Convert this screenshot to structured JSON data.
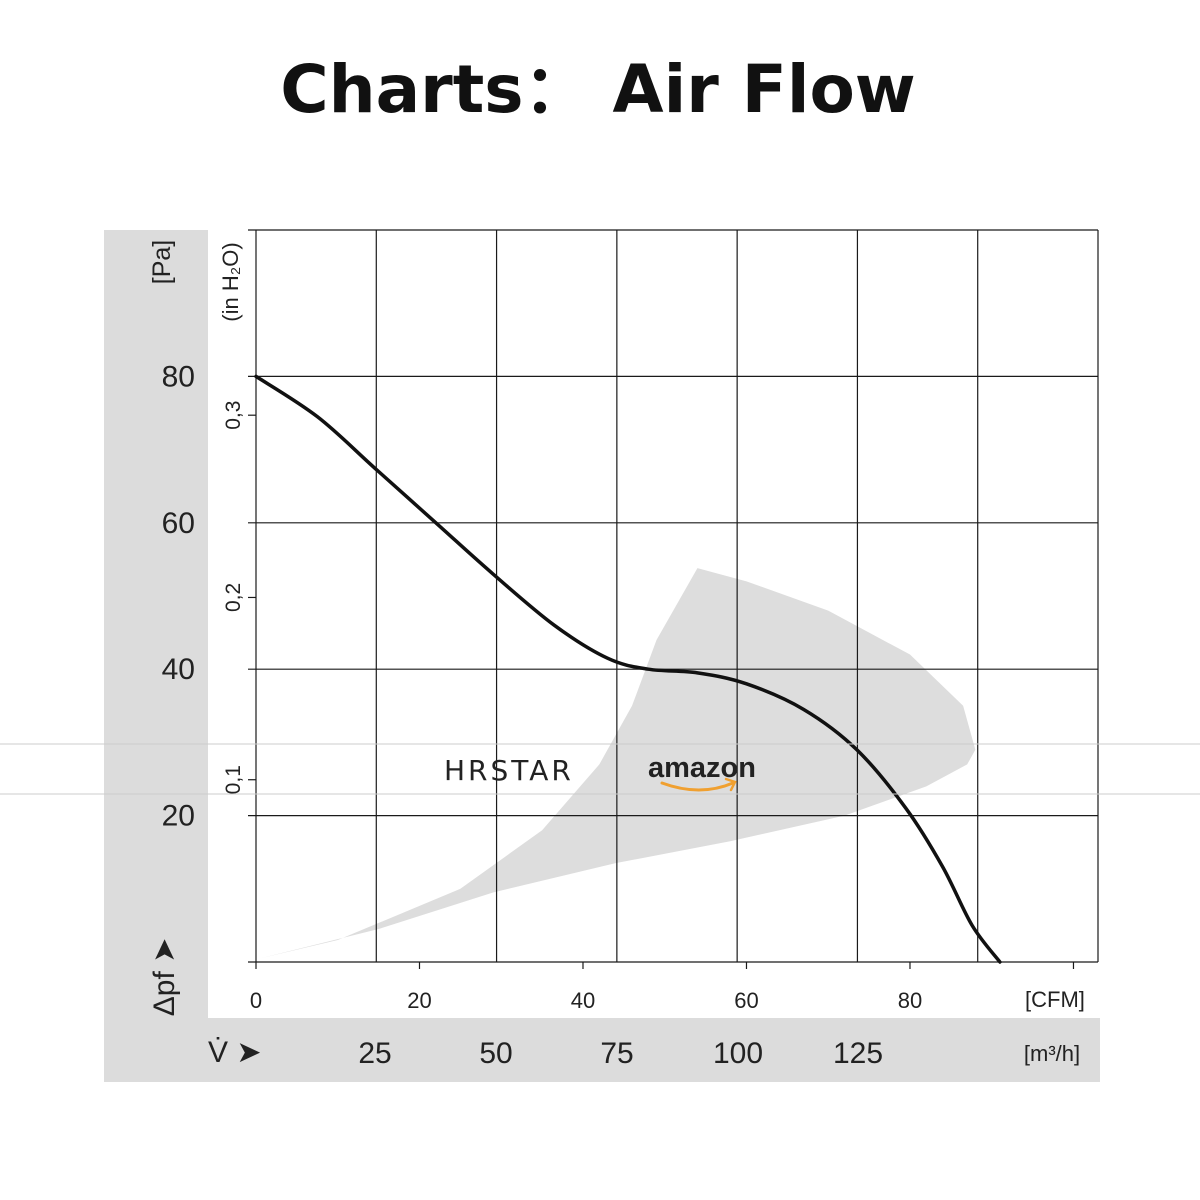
{
  "title": "Charts：  Air Flow",
  "watermarks": {
    "brand": "HRSTAR",
    "store": "amazon"
  },
  "chart_data": {
    "type": "line",
    "x_axis": {
      "unit_label": "[CFM]",
      "ticks": [
        0,
        20,
        40,
        60,
        80
      ],
      "range": [
        0,
        103
      ],
      "secondary": {
        "unit_label": "[m³/h]",
        "ticks": [
          25,
          50,
          75,
          100,
          125
        ],
        "symbol": "V̇ ➤"
      }
    },
    "y_axis": {
      "unit_label": "[Pa]",
      "ticks": [
        20,
        40,
        60,
        80
      ],
      "range": [
        0,
        100
      ],
      "symbol": "Δpf ➤",
      "secondary": {
        "unit_label": "(in H₂O)",
        "ticks": [
          "0,1",
          "0,2",
          "0,3"
        ],
        "tick_values_pa": [
          24.9,
          49.8,
          74.7
        ]
      }
    },
    "grid": true,
    "series": [
      {
        "points": [
          [
            0,
            80
          ],
          [
            7.5,
            74.5
          ],
          [
            14.5,
            67.5
          ],
          [
            22,
            60
          ],
          [
            29,
            53
          ],
          [
            36.5,
            46
          ],
          [
            43,
            41.5
          ],
          [
            48,
            40
          ],
          [
            54,
            39.5
          ],
          [
            60,
            38
          ],
          [
            67,
            34.5
          ],
          [
            73.5,
            29
          ],
          [
            79.5,
            21
          ],
          [
            84,
            13
          ],
          [
            87.6,
            5
          ],
          [
            91,
            0
          ]
        ]
      }
    ],
    "operating_range": {
      "color": "#dddddd",
      "outline": [
        [
          0.5,
          0.5
        ],
        [
          15,
          4.5
        ],
        [
          29,
          9.5
        ],
        [
          44,
          13.5
        ],
        [
          58,
          16.5
        ],
        [
          72,
          20
        ],
        [
          82,
          24
        ],
        [
          87,
          27
        ],
        [
          88,
          29
        ],
        [
          86.5,
          35
        ],
        [
          80,
          42
        ],
        [
          70,
          48
        ],
        [
          60,
          52
        ],
        [
          54,
          53.8
        ],
        [
          49,
          44
        ],
        [
          46,
          35
        ],
        [
          42,
          27
        ],
        [
          35,
          18
        ],
        [
          25,
          10
        ],
        [
          10,
          3
        ]
      ]
    }
  }
}
